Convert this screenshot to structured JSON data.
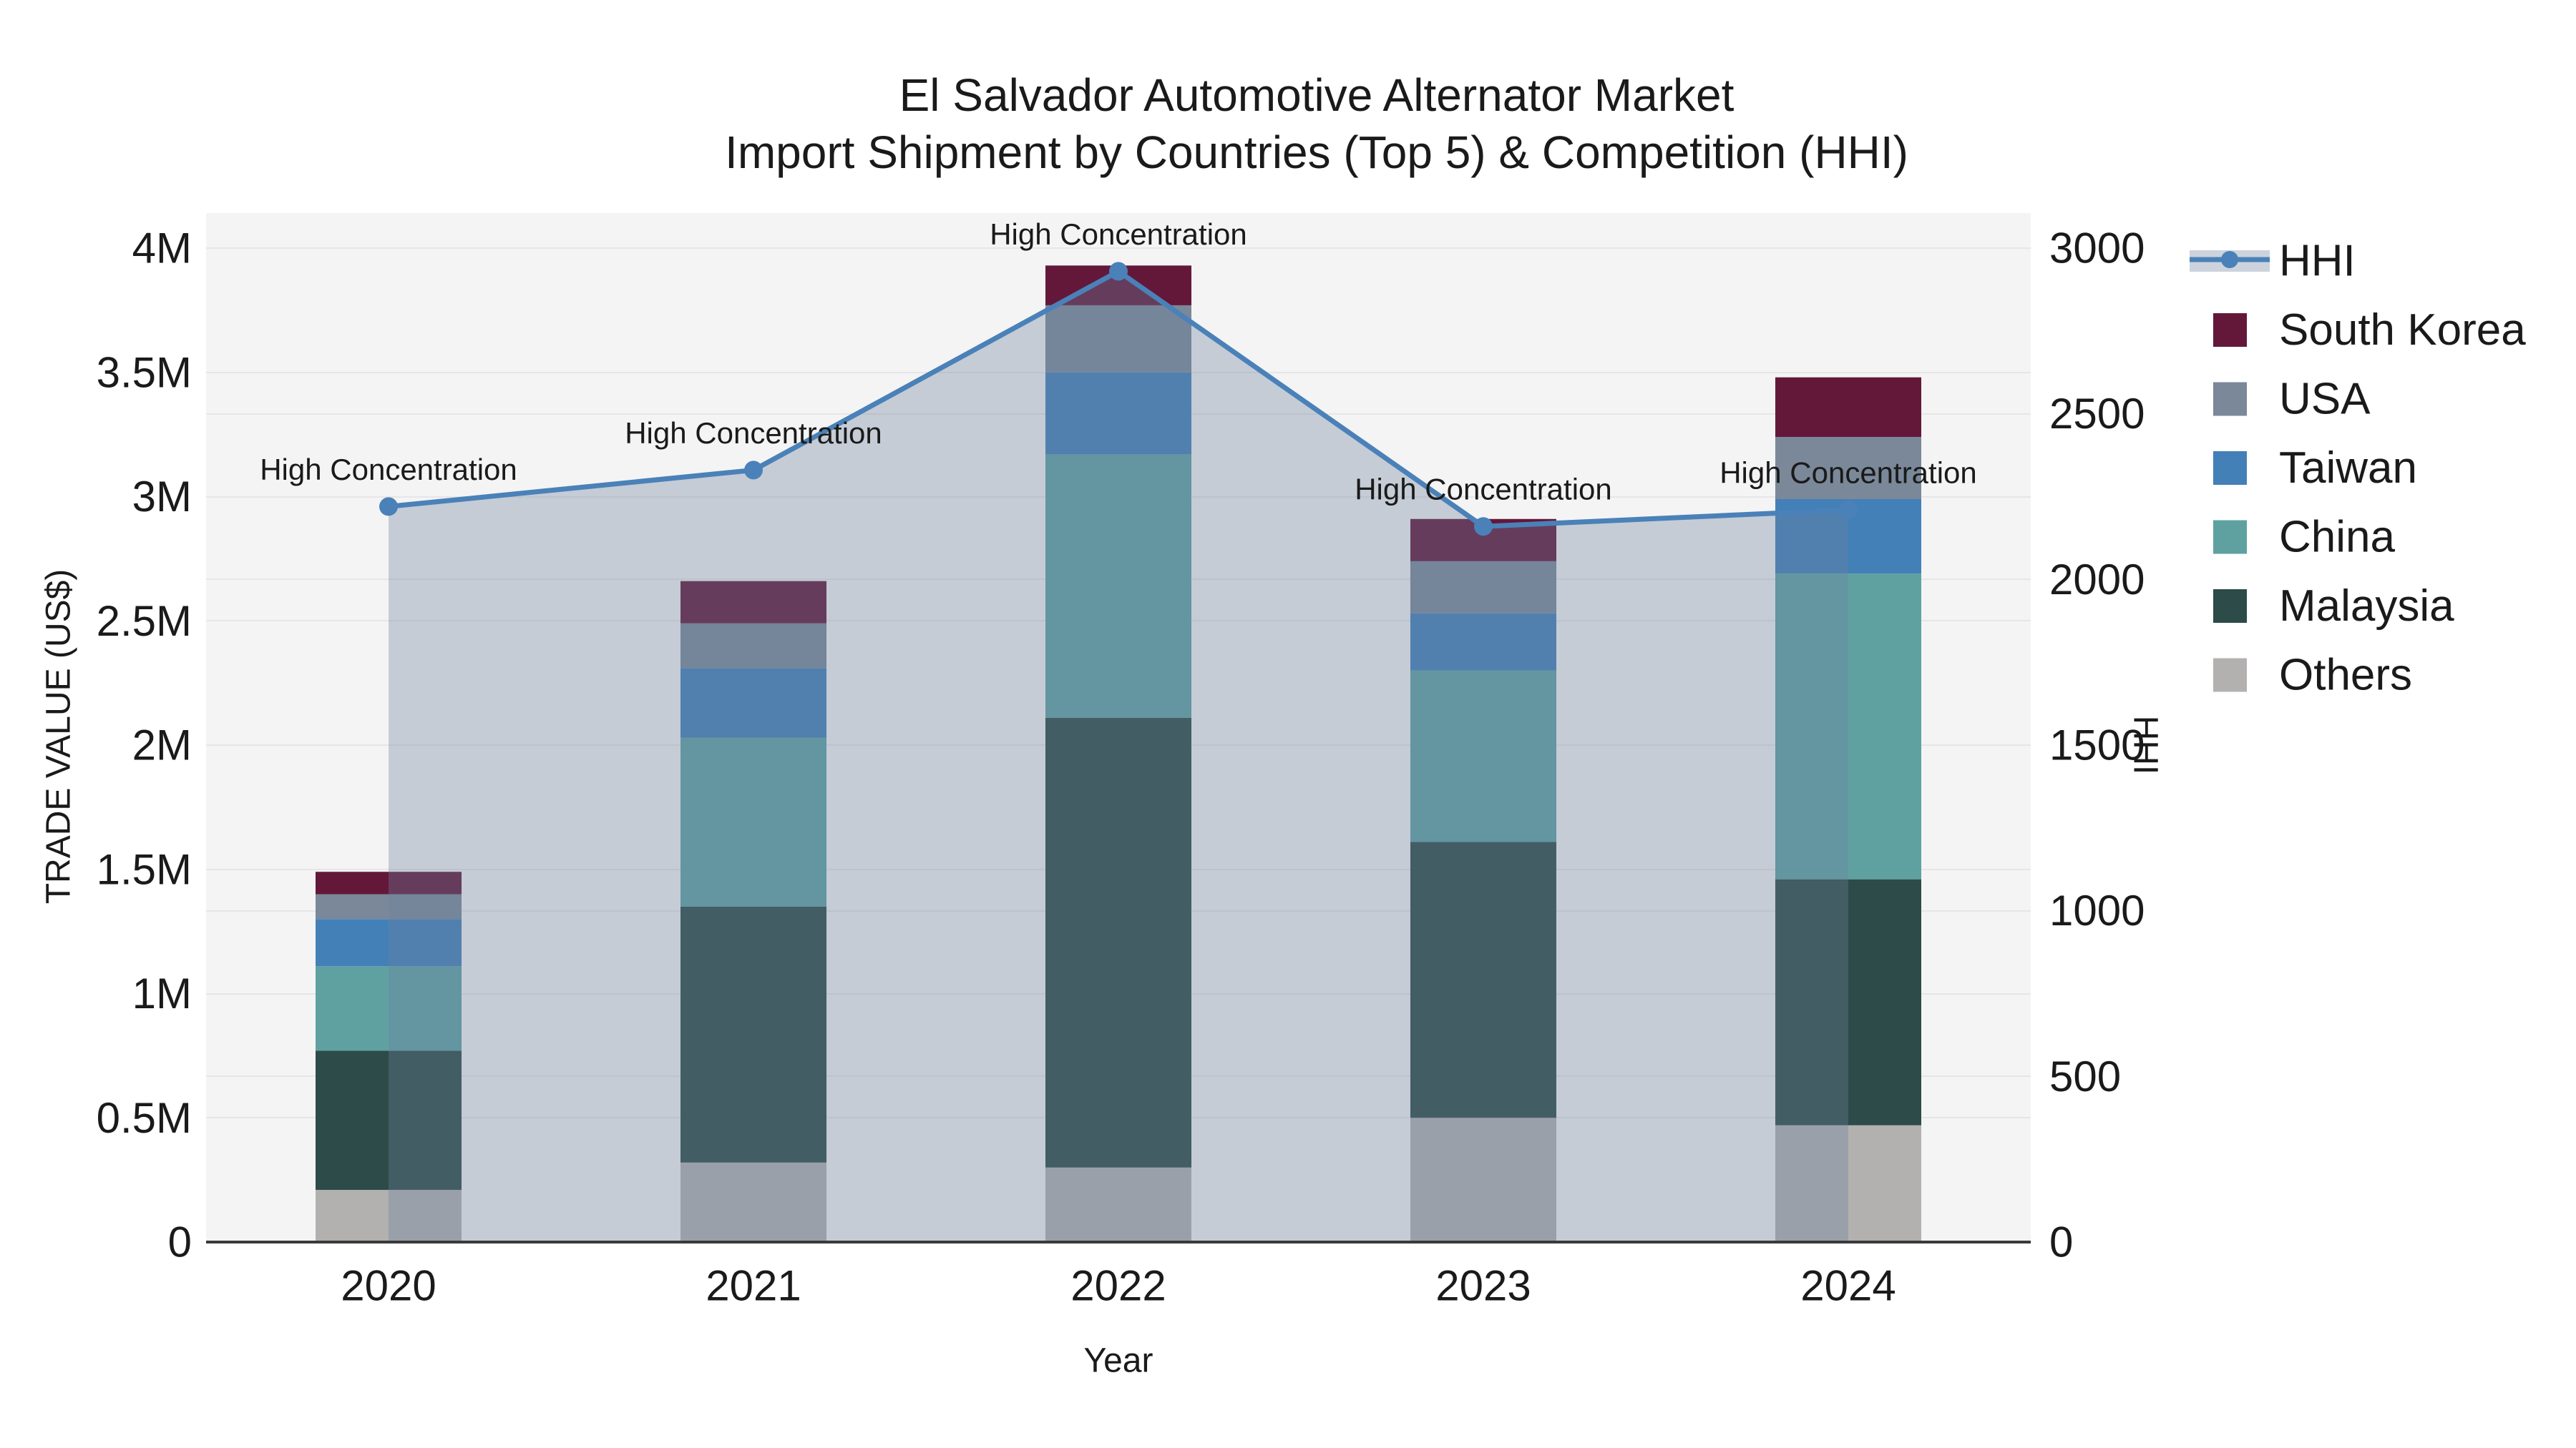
{
  "title": {
    "line1": "El Salvador Automotive Alternator Market",
    "line2": "Import Shipment by Countries (Top 5) & Competition (HHI)"
  },
  "chart_data": {
    "type": "combo-stacked-bar-line",
    "title": "El Salvador Automotive Alternator Market — Import Shipment by Countries (Top 5) & Competition (HHI)",
    "x_label": "Year",
    "categories": [
      "2020",
      "2021",
      "2022",
      "2023",
      "2024"
    ],
    "bar_series_bottom_to_top": [
      {
        "name": "Others",
        "color": "#b2b1af",
        "values": [
          210000,
          320000,
          300000,
          500000,
          470000
        ]
      },
      {
        "name": "Malaysia",
        "color": "#2d4b48",
        "values": [
          560000,
          1030000,
          1810000,
          1110000,
          990000
        ]
      },
      {
        "name": "China",
        "color": "#5fa1a1",
        "values": [
          340000,
          680000,
          1060000,
          690000,
          1230000
        ]
      },
      {
        "name": "Taiwan",
        "color": "#4380b8",
        "values": [
          190000,
          280000,
          330000,
          230000,
          300000
        ]
      },
      {
        "name": "USA",
        "color": "#7a8899",
        "values": [
          100000,
          180000,
          270000,
          210000,
          250000
        ]
      },
      {
        "name": "South Korea",
        "color": "#63183a",
        "values": [
          90000,
          170000,
          160000,
          170000,
          240000
        ]
      }
    ],
    "line_series": {
      "name": "HHI",
      "color": "#4a81b8",
      "area_fill": "rgba(110,130,158,0.35)",
      "values": [
        2220,
        2330,
        2930,
        2160,
        2210
      ]
    },
    "annotations": [
      {
        "category": "2020",
        "text": "High Concentration"
      },
      {
        "category": "2021",
        "text": "High Concentration"
      },
      {
        "category": "2022",
        "text": "High Concentration"
      },
      {
        "category": "2023",
        "text": "High Concentration"
      },
      {
        "category": "2024",
        "text": "High Concentration"
      }
    ],
    "y_left": {
      "title": "TRADE VALUE (US$)",
      "min": 0,
      "max": 4000000,
      "ticks": [
        {
          "value": 0,
          "label": "0"
        },
        {
          "value": 500000,
          "label": "0.5M"
        },
        {
          "value": 1000000,
          "label": "1M"
        },
        {
          "value": 1500000,
          "label": "1.5M"
        },
        {
          "value": 2000000,
          "label": "2M"
        },
        {
          "value": 2500000,
          "label": "2.5M"
        },
        {
          "value": 3000000,
          "label": "3M"
        },
        {
          "value": 3500000,
          "label": "3.5M"
        },
        {
          "value": 4000000,
          "label": "4M"
        }
      ]
    },
    "y_right": {
      "title": "HHI",
      "min": 0,
      "max": 3000,
      "ticks": [
        {
          "value": 0,
          "label": "0"
        },
        {
          "value": 500,
          "label": "500"
        },
        {
          "value": 1000,
          "label": "1000"
        },
        {
          "value": 1500,
          "label": "1500"
        },
        {
          "value": 2000,
          "label": "2000"
        },
        {
          "value": 2500,
          "label": "2500"
        },
        {
          "value": 3000,
          "label": "3000"
        }
      ]
    },
    "legend_order": [
      "HHI",
      "South Korea",
      "USA",
      "Taiwan",
      "China",
      "Malaysia",
      "Others"
    ],
    "style": {
      "plot_bg": "#f4f4f4",
      "grid_color": "#e6e6e6",
      "axis_line_color": "#3a3a3a",
      "text_color": "#1a1a1a"
    },
    "grid": true,
    "legend_position": "right"
  }
}
